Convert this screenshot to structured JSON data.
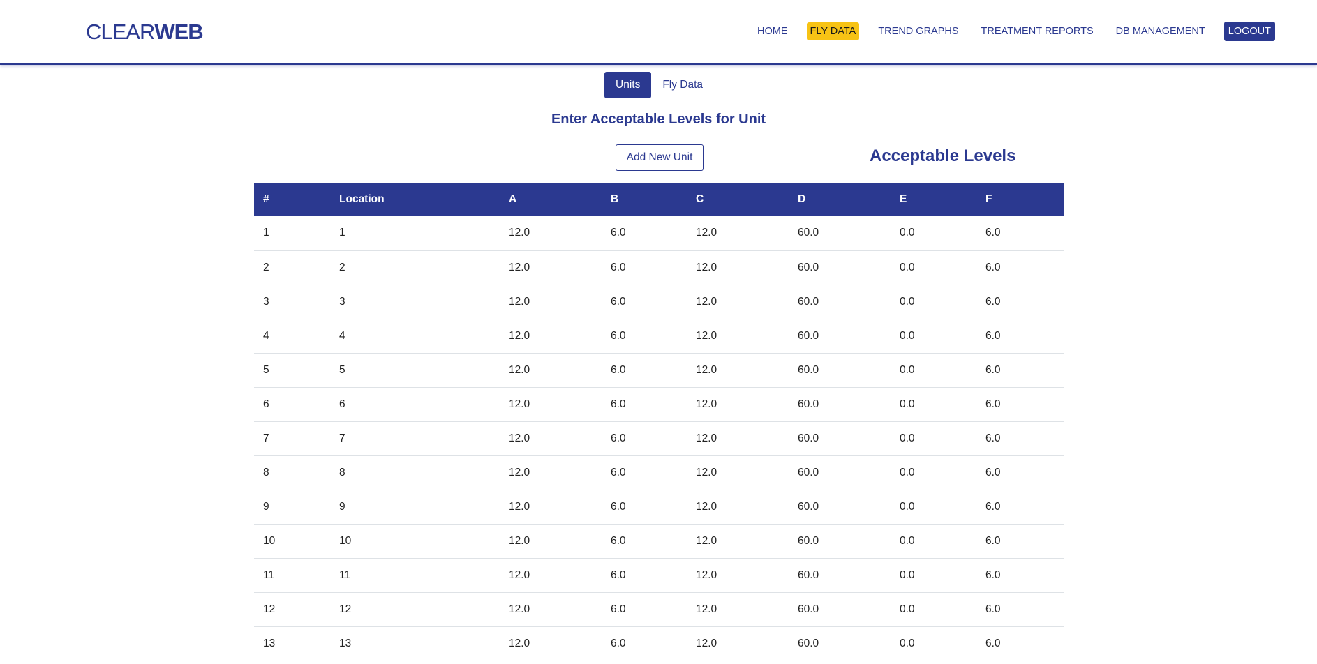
{
  "brand": {
    "light": "CLEAR",
    "bold": "WEB"
  },
  "nav": {
    "items": [
      {
        "label": "HOME",
        "name": "nav-home"
      },
      {
        "label": "FLY DATA",
        "name": "nav-fly-data",
        "active": true
      },
      {
        "label": "TREND GRAPHS",
        "name": "nav-trend-graphs"
      },
      {
        "label": "TREATMENT REPORTS",
        "name": "nav-treatment-reports"
      },
      {
        "label": "DB MANAGEMENT",
        "name": "nav-db-management"
      },
      {
        "label": "LOGOUT",
        "name": "nav-logout"
      }
    ]
  },
  "tabs": {
    "units": "Units",
    "fly_data": "Fly Data",
    "active": "units"
  },
  "section_title": "Enter Acceptable Levels for Unit",
  "add_button_label": "Add New Unit",
  "levels_title": "Acceptable Levels",
  "table": {
    "headers": [
      "#",
      "Location",
      "A",
      "B",
      "C",
      "D",
      "E",
      "F"
    ],
    "rows": [
      [
        "1",
        "1",
        "12.0",
        "6.0",
        "12.0",
        "60.0",
        "0.0",
        "6.0"
      ],
      [
        "2",
        "2",
        "12.0",
        "6.0",
        "12.0",
        "60.0",
        "0.0",
        "6.0"
      ],
      [
        "3",
        "3",
        "12.0",
        "6.0",
        "12.0",
        "60.0",
        "0.0",
        "6.0"
      ],
      [
        "4",
        "4",
        "12.0",
        "6.0",
        "12.0",
        "60.0",
        "0.0",
        "6.0"
      ],
      [
        "5",
        "5",
        "12.0",
        "6.0",
        "12.0",
        "60.0",
        "0.0",
        "6.0"
      ],
      [
        "6",
        "6",
        "12.0",
        "6.0",
        "12.0",
        "60.0",
        "0.0",
        "6.0"
      ],
      [
        "7",
        "7",
        "12.0",
        "6.0",
        "12.0",
        "60.0",
        "0.0",
        "6.0"
      ],
      [
        "8",
        "8",
        "12.0",
        "6.0",
        "12.0",
        "60.0",
        "0.0",
        "6.0"
      ],
      [
        "9",
        "9",
        "12.0",
        "6.0",
        "12.0",
        "60.0",
        "0.0",
        "6.0"
      ],
      [
        "10",
        "10",
        "12.0",
        "6.0",
        "12.0",
        "60.0",
        "0.0",
        "6.0"
      ],
      [
        "11",
        "11",
        "12.0",
        "6.0",
        "12.0",
        "60.0",
        "0.0",
        "6.0"
      ],
      [
        "12",
        "12",
        "12.0",
        "6.0",
        "12.0",
        "60.0",
        "0.0",
        "6.0"
      ],
      [
        "13",
        "13",
        "12.0",
        "6.0",
        "12.0",
        "60.0",
        "0.0",
        "6.0"
      ]
    ]
  },
  "colors": {
    "primary": "#2b3990",
    "accent": "#f7c315",
    "row_border": "#dee2e6"
  }
}
